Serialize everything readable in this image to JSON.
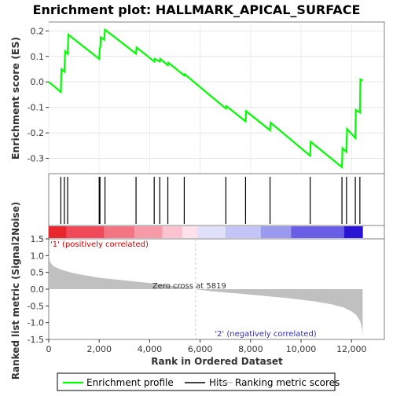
{
  "chart_data": {
    "type": "line",
    "title": "Enrichment plot: HALLMARK_APICAL_SURFACE",
    "xlabel": "Rank in Ordered Dataset",
    "x_ticks": [
      0,
      2000,
      4000,
      6000,
      8000,
      10000,
      12000
    ],
    "x_tick_labels": [
      "0",
      "2,000",
      "4,000",
      "6,000",
      "8,000",
      "10,000",
      "12,000"
    ],
    "xlim": [
      0,
      13300
    ],
    "es_panel": {
      "ylabel": "Enrichment score (ES)",
      "ylim": [
        -0.36,
        0.235
      ],
      "y_ticks": [
        -0.3,
        -0.2,
        -0.1,
        0.0,
        0.1,
        0.2
      ],
      "y_tick_labels": [
        "-0.3",
        "-0.2",
        "-0.1",
        "0.0",
        "0.1",
        "0.2"
      ],
      "series": [
        {
          "name": "Enrichment profile",
          "color": "#00ff00",
          "points": [
            [
              0,
              0.0
            ],
            [
              480,
              -0.04
            ],
            [
              500,
              0.05
            ],
            [
              620,
              0.04
            ],
            [
              650,
              0.12
            ],
            [
              750,
              0.11
            ],
            [
              780,
              0.185
            ],
            [
              2000,
              0.09
            ],
            [
              2020,
              0.13
            ],
            [
              2050,
              0.14
            ],
            [
              2060,
              0.175
            ],
            [
              2200,
              0.165
            ],
            [
              2230,
              0.205
            ],
            [
              3460,
              0.11
            ],
            [
              3480,
              0.135
            ],
            [
              4180,
              0.08
            ],
            [
              4200,
              0.09
            ],
            [
              4400,
              0.08
            ],
            [
              4420,
              0.09
            ],
            [
              4720,
              0.065
            ],
            [
              4740,
              0.075
            ],
            [
              5370,
              0.025
            ],
            [
              5390,
              0.03
            ],
            [
              7020,
              -0.105
            ],
            [
              7040,
              -0.095
            ],
            [
              7800,
              -0.155
            ],
            [
              7820,
              -0.115
            ],
            [
              8770,
              -0.19
            ],
            [
              8790,
              -0.16
            ],
            [
              10360,
              -0.29
            ],
            [
              10380,
              -0.235
            ],
            [
              11620,
              -0.335
            ],
            [
              11640,
              -0.26
            ],
            [
              11800,
              -0.275
            ],
            [
              11820,
              -0.185
            ],
            [
              12150,
              -0.22
            ],
            [
              12170,
              -0.11
            ],
            [
              12330,
              -0.12
            ],
            [
              12350,
              0.01
            ],
            [
              12440,
              0.005
            ]
          ]
        }
      ]
    },
    "hits": [
      480,
      620,
      750,
      2000,
      2030,
      2230,
      3460,
      4180,
      4400,
      4720,
      5370,
      7020,
      7800,
      8770,
      10360,
      11620,
      11800,
      12150,
      12330
    ],
    "hits_legend": "Hits",
    "color_bar_segments": [
      {
        "x_from": 0,
        "x_to": 700,
        "color": "#e8262e"
      },
      {
        "x_from": 700,
        "x_to": 2200,
        "color": "#f0495a"
      },
      {
        "x_from": 2200,
        "x_to": 3400,
        "color": "#f37583"
      },
      {
        "x_from": 3400,
        "x_to": 4500,
        "color": "#f79aa8"
      },
      {
        "x_from": 4500,
        "x_to": 5300,
        "color": "#fbc2cf"
      },
      {
        "x_from": 5300,
        "x_to": 5900,
        "color": "#fde2ec"
      },
      {
        "x_from": 5900,
        "x_to": 7000,
        "color": "#e0e0fb"
      },
      {
        "x_from": 7000,
        "x_to": 8400,
        "color": "#c4c4f6"
      },
      {
        "x_from": 8400,
        "x_to": 9600,
        "color": "#9a9af0"
      },
      {
        "x_from": 9600,
        "x_to": 11700,
        "color": "#6a5ee6"
      },
      {
        "x_from": 11700,
        "x_to": 12450,
        "color": "#2a14d4"
      }
    ],
    "metric_panel": {
      "ylabel": "Ranked list metric (Signal2Noise)",
      "ylim": [
        -1.5,
        1.5
      ],
      "y_ticks": [
        -1.5,
        -1.0,
        -0.5,
        0.0,
        0.5,
        1.0,
        1.5
      ],
      "y_tick_labels": [
        "-1.5",
        "-1.0",
        "-0.5",
        "0.0",
        "0.5",
        "1.0",
        "1.5"
      ],
      "series_name": "Ranking metric scores",
      "fill_color": "#c0c0c0",
      "points": [
        [
          0,
          1.05
        ],
        [
          60,
          0.8
        ],
        [
          200,
          0.68
        ],
        [
          500,
          0.58
        ],
        [
          1000,
          0.47
        ],
        [
          2000,
          0.34
        ],
        [
          3000,
          0.26
        ],
        [
          4000,
          0.18
        ],
        [
          5000,
          0.09
        ],
        [
          5819,
          0.0
        ],
        [
          6500,
          -0.07
        ],
        [
          7500,
          -0.13
        ],
        [
          8500,
          -0.2
        ],
        [
          9500,
          -0.27
        ],
        [
          10500,
          -0.36
        ],
        [
          11200,
          -0.45
        ],
        [
          11700,
          -0.55
        ],
        [
          12000,
          -0.66
        ],
        [
          12200,
          -0.78
        ],
        [
          12350,
          -0.97
        ],
        [
          12420,
          -1.2
        ],
        [
          12440,
          -1.42
        ]
      ],
      "zero_cross_x": 5819,
      "zero_cross_label": "Zero cross at 5819",
      "pos_label": "'1' (positively correlated)",
      "neg_label": "'2' (negatively correlated)"
    },
    "legend_entries": [
      {
        "name": "Enrichment profile",
        "color": "#00ff00"
      },
      {
        "name": "Hits",
        "color": "#000000"
      },
      {
        "name": "Ranking metric scores",
        "color": "#c0c0c0"
      }
    ],
    "legend_position": "bottom"
  }
}
